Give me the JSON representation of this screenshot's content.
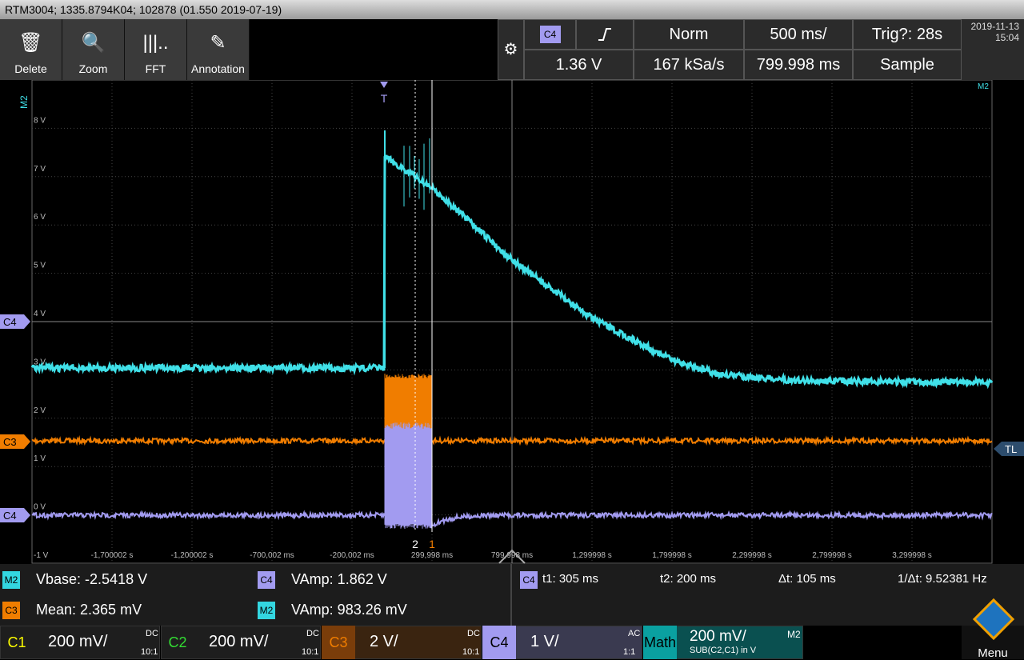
{
  "title_bar": "RTM3004; 1335.8794K04; 102878 (01.550 2019-07-19)",
  "toolbar": [
    "Delete",
    "Zoom",
    "FFT",
    "Annotation"
  ],
  "header": {
    "trigger_source": "C4",
    "trigger_mode": "Norm",
    "timebase": "500 ms/",
    "trigger_status": "Trig?: 28s",
    "trigger_level": "1.36 V",
    "sample_rate": "167 kSa/s",
    "position": "799.998 ms",
    "acquisition": "Sample",
    "date": "2019-11-13",
    "time": "15:04"
  },
  "plot": {
    "math_label": "M2",
    "trigger_marker": "T",
    "y_labels": [
      "8 V",
      "7 V",
      "6 V",
      "5 V",
      "4 V",
      "3 V",
      "2 V",
      "1 V",
      "0 V",
      "-1 V"
    ],
    "x_labels": [
      "-1,700002 s",
      "-1,200002 s",
      "-700,002 ms",
      "-200,002 ms",
      "299,998 ms",
      "799,998 ms",
      "1,299998 s",
      "1,799998 s",
      "2,299998 s",
      "2,799998 s",
      "3,299998 s"
    ],
    "markers": {
      "c4_offset": "C4",
      "c3": "C3",
      "c4": "C4",
      "trigger_level": "TL",
      "cursor_2": "2",
      "cursor_1": "1"
    }
  },
  "measurements": [
    {
      "source": "M2",
      "text": "Vbase: -2.5418 V"
    },
    {
      "source": "C4",
      "text": "VAmp: 1.862 V"
    },
    {
      "source": "C3",
      "text": "Mean: 2.365 mV"
    },
    {
      "source": "M2",
      "text": "VAmp: 983.26 mV"
    }
  ],
  "cursors": {
    "source": "C4",
    "t1": "t1: 305 ms",
    "t2": "t2: 200 ms",
    "dt": "Δt: 105 ms",
    "inv_dt": "1/Δt: 9.52381 Hz"
  },
  "channels": [
    {
      "name": "C1",
      "scale": "200 mV/",
      "coupling": "DC",
      "probe": "10:1"
    },
    {
      "name": "C2",
      "scale": "200 mV/",
      "coupling": "DC",
      "probe": "10:1"
    },
    {
      "name": "C3",
      "scale": "2 V/",
      "coupling": "DC",
      "probe": "10:1"
    },
    {
      "name": "C4",
      "scale": "1 V/",
      "coupling": "AC",
      "probe": "1:1"
    },
    {
      "name": "Math",
      "scale": "200 mV/",
      "expr": "SUB(C2,C1) in V",
      "target": "M2"
    }
  ],
  "menu": "Menu"
}
